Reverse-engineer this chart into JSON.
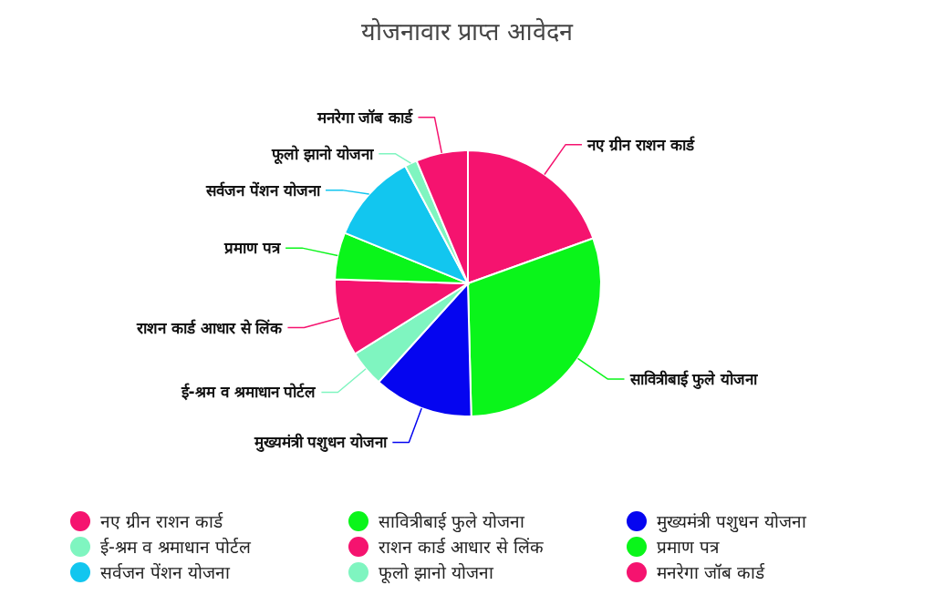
{
  "chart_data": {
    "type": "pie",
    "title": "योजनावार प्राप्त आवेदन",
    "categories": [
      "नए ग्रीन राशन कार्ड",
      "सावित्रीबाई फुले योजना",
      "मुख्यमंत्री पशुधन योजना",
      "ई-श्रम व श्रमाधान पोर्टल",
      "राशन कार्ड आधार से लिंक",
      "प्रमाण पत्र",
      "सर्वजन पेंशन योजना",
      "फूलो झानो योजना",
      "मनरेगा जॉब कार्ड"
    ],
    "values": [
      19.5,
      30.1,
      12.1,
      4.4,
      9.4,
      5.7,
      11.0,
      1.5,
      6.3
    ],
    "colors": [
      "#f5136f",
      "#0af51a",
      "#0505f0",
      "#7ff5c0",
      "#f5136f",
      "#0af51a",
      "#12c6ef",
      "#7ff5c0",
      "#f5136f"
    ],
    "legend": "bottom"
  }
}
